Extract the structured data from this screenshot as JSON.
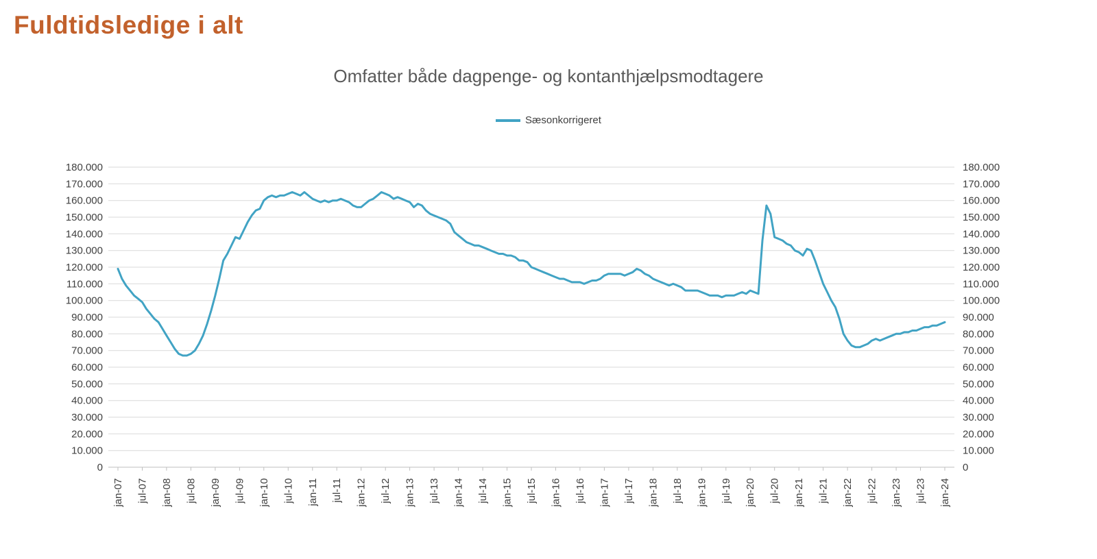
{
  "header": {
    "title": "Fuldtidsledige i alt"
  },
  "chart": {
    "title": "Omfatter både dagpenge- og kontanthjælpsmodtagere",
    "legend_label": "Sæsonkorrigeret"
  },
  "chart_data": {
    "type": "line",
    "title": "Omfatter både dagpenge- og kontanthjælpsmodtagere",
    "legend": [
      "Sæsonkorrigeret"
    ],
    "legend_position": "top-center",
    "series_color": "#41a3c4",
    "grid": true,
    "xlabel": "",
    "ylabel": "",
    "ylim": [
      0,
      180000
    ],
    "y_step": 10000,
    "y_tick_labels": [
      "0",
      "10.000",
      "20.000",
      "30.000",
      "40.000",
      "50.000",
      "60.000",
      "70.000",
      "80.000",
      "90.000",
      "100.000",
      "110.000",
      "120.000",
      "130.000",
      "140.000",
      "150.000",
      "160.000",
      "170.000",
      "180.000"
    ],
    "x_start": "jan-07",
    "x_end": "jan-24",
    "frequency": "monthly",
    "x_tick_every": 6,
    "x_tick_labels": [
      "jan-07",
      "jul-07",
      "jan-08",
      "jul-08",
      "jan-09",
      "jul-09",
      "jan-10",
      "jul-10",
      "jan-11",
      "jul-11",
      "jan-12",
      "jul-12",
      "jan-13",
      "jul-13",
      "jan-14",
      "jul-14",
      "jan-15",
      "jul-15",
      "jan-16",
      "jul-16",
      "jan-17",
      "jul-17",
      "jan-18",
      "jul-18",
      "jan-19",
      "jul-19",
      "jan-20",
      "jul-20",
      "jan-21",
      "jul-21",
      "jan-22",
      "jul-22",
      "jan-23",
      "jul-23",
      "jan-24"
    ],
    "values": [
      119000,
      113000,
      109000,
      106000,
      103000,
      101000,
      99000,
      95000,
      92000,
      89000,
      87000,
      83000,
      79000,
      75000,
      71000,
      68000,
      67000,
      67000,
      68000,
      70000,
      74000,
      79000,
      86000,
      94000,
      103000,
      113000,
      124000,
      128000,
      133000,
      138000,
      137000,
      142000,
      147000,
      151000,
      154000,
      155000,
      160000,
      162000,
      163000,
      162000,
      163000,
      163000,
      164000,
      165000,
      164000,
      163000,
      165000,
      163000,
      161000,
      160000,
      159000,
      160000,
      159000,
      160000,
      160000,
      161000,
      160000,
      159000,
      157000,
      156000,
      156000,
      158000,
      160000,
      161000,
      163000,
      165000,
      164000,
      163000,
      161000,
      162000,
      161000,
      160000,
      159000,
      156000,
      158000,
      157000,
      154000,
      152000,
      151000,
      150000,
      149000,
      148000,
      146000,
      141000,
      139000,
      137000,
      135000,
      134000,
      133000,
      133000,
      132000,
      131000,
      130000,
      129000,
      128000,
      128000,
      127000,
      127000,
      126000,
      124000,
      124000,
      123000,
      120000,
      119000,
      118000,
      117000,
      116000,
      115000,
      114000,
      113000,
      113000,
      112000,
      111000,
      111000,
      111000,
      110000,
      111000,
      112000,
      112000,
      113000,
      115000,
      116000,
      116000,
      116000,
      116000,
      115000,
      116000,
      117000,
      119000,
      118000,
      116000,
      115000,
      113000,
      112000,
      111000,
      110000,
      109000,
      110000,
      109000,
      108000,
      106000,
      106000,
      106000,
      106000,
      105000,
      104000,
      103000,
      103000,
      103000,
      102000,
      103000,
      103000,
      103000,
      104000,
      105000,
      104000,
      106000,
      105000,
      104000,
      136000,
      157000,
      152000,
      138000,
      137000,
      136000,
      134000,
      133000,
      130000,
      129000,
      127000,
      131000,
      130000,
      124000,
      117000,
      110000,
      105000,
      100000,
      96000,
      89000,
      80000,
      76000,
      73000,
      72000,
      72000,
      73000,
      74000,
      76000,
      77000,
      76000,
      77000,
      78000,
      79000,
      80000,
      80000,
      81000,
      81000,
      82000,
      82000,
      83000,
      84000,
      84000,
      85000,
      85000,
      86000,
      87000
    ]
  }
}
